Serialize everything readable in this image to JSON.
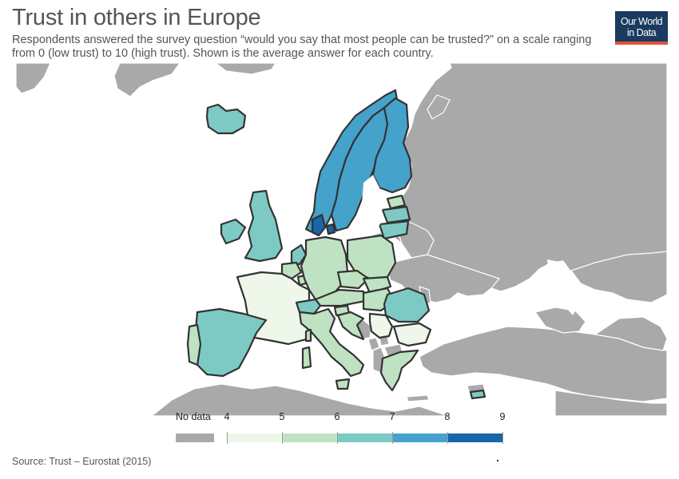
{
  "title": "Trust in others in Europe",
  "subtitle": "Respondents answered the survey question “would you say that most people can be trusted?” on a scale ranging from 0 (low trust) to 10 (high trust). Shown is the average answer for each country.",
  "logo": {
    "line1": "Our World",
    "line2": "in Data"
  },
  "source": "Source: Trust – Eurostat (2015)",
  "colors": {
    "nodata": "#a9a9a9",
    "water": "#ffffff",
    "border": "#333333",
    "bins": [
      "#eef7e9",
      "#bfe3c2",
      "#7dcac5",
      "#45a2cb",
      "#1865a8"
    ]
  },
  "legend": {
    "nodata_label": "No data",
    "ticks": [
      "4",
      "5",
      "6",
      "7",
      "8",
      "9"
    ]
  },
  "map_data": {
    "type": "choropleth",
    "variable": "Average trust in others (0-10)",
    "bins": [
      [
        4,
        5
      ],
      [
        5,
        6
      ],
      [
        6,
        7
      ],
      [
        7,
        8
      ],
      [
        8,
        9
      ]
    ],
    "countries": [
      {
        "name": "Iceland",
        "bin": 2
      },
      {
        "name": "Norway",
        "bin": 3
      },
      {
        "name": "Sweden",
        "bin": 3
      },
      {
        "name": "Finland",
        "bin": 3
      },
      {
        "name": "Denmark",
        "bin": 4
      },
      {
        "name": "Estonia",
        "bin": 1
      },
      {
        "name": "Latvia",
        "bin": 2
      },
      {
        "name": "Lithuania",
        "bin": 2
      },
      {
        "name": "Ireland",
        "bin": 2
      },
      {
        "name": "United Kingdom",
        "bin": 2
      },
      {
        "name": "Netherlands",
        "bin": 2
      },
      {
        "name": "Belgium",
        "bin": 1
      },
      {
        "name": "Luxembourg",
        "bin": 1
      },
      {
        "name": "France",
        "bin": 0
      },
      {
        "name": "Germany",
        "bin": 1
      },
      {
        "name": "Poland",
        "bin": 1
      },
      {
        "name": "Czechia",
        "bin": 1
      },
      {
        "name": "Slovakia",
        "bin": 1
      },
      {
        "name": "Austria",
        "bin": 1
      },
      {
        "name": "Switzerland",
        "bin": 2
      },
      {
        "name": "Hungary",
        "bin": 1
      },
      {
        "name": "Slovenia",
        "bin": 1
      },
      {
        "name": "Croatia",
        "bin": 1
      },
      {
        "name": "Romania",
        "bin": 2
      },
      {
        "name": "Bulgaria",
        "bin": 0
      },
      {
        "name": "Serbia",
        "bin": 0
      },
      {
        "name": "Italy",
        "bin": 1
      },
      {
        "name": "Spain",
        "bin": 2
      },
      {
        "name": "Portugal",
        "bin": 1
      },
      {
        "name": "Greece",
        "bin": 1
      },
      {
        "name": "Cyprus",
        "bin": 2
      }
    ]
  }
}
